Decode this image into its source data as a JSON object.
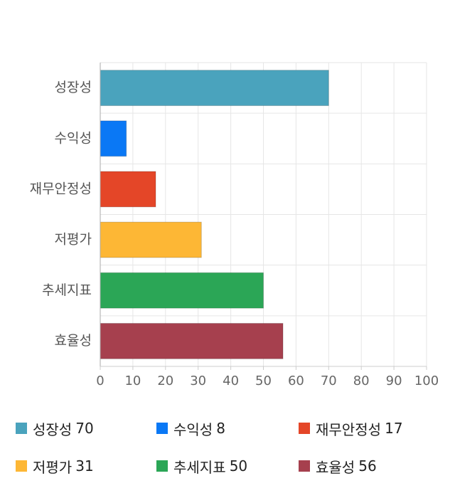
{
  "chart_data": {
    "type": "bar",
    "orientation": "horizontal",
    "title": "",
    "xlabel": "",
    "ylabel": "",
    "categories": [
      "성장성",
      "수익성",
      "재무안정성",
      "저평가",
      "추세지표",
      "효율성"
    ],
    "values": [
      70,
      8,
      17,
      31,
      50,
      56
    ],
    "colors": [
      "#4aa3bd",
      "#0a78f5",
      "#e44628",
      "#fdb735",
      "#2ba656",
      "#a6404e"
    ],
    "xlim": [
      0,
      100
    ],
    "xticks": [
      0,
      10,
      20,
      30,
      40,
      50,
      60,
      70,
      80,
      90,
      100
    ],
    "grid": true,
    "legend": {
      "placement": "bottom",
      "entries": [
        {
          "label": "성장성",
          "value": "70"
        },
        {
          "label": "수익성",
          "value": "8"
        },
        {
          "label": "재무안정성",
          "value": "17"
        },
        {
          "label": "저평가",
          "value": "31"
        },
        {
          "label": "추세지표",
          "value": "50"
        },
        {
          "label": "효율성",
          "value": "56"
        }
      ]
    }
  }
}
